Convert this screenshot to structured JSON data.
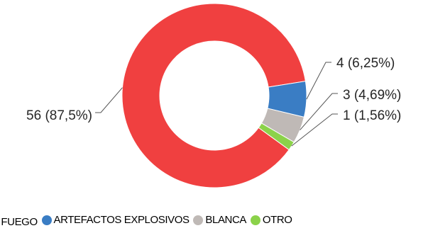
{
  "chart_data": {
    "type": "pie",
    "donut": true,
    "slices": [
      {
        "label": "ARMA DE FUEGO",
        "value": 56,
        "data_label": "56 (87,5%)",
        "color": "#f04040"
      },
      {
        "label": "ARTEFACTOS EXPLOSIVOS",
        "value": 4,
        "data_label": "4 (6,25%)",
        "color": "#3a7dc4"
      },
      {
        "label": "BLANCA",
        "value": 3,
        "data_label": "3 (4,69%)",
        "color": "#bfb9b6"
      },
      {
        "label": "OTRO",
        "value": 1,
        "data_label": "1 (1,56%)",
        "color": "#8bd24a"
      }
    ],
    "legend": {
      "position": "bottom",
      "visible_text": [
        "E FUEGO",
        "ARTEFACTOS EXPLOSIVOS",
        "BLANCA",
        "OTRO"
      ]
    }
  }
}
